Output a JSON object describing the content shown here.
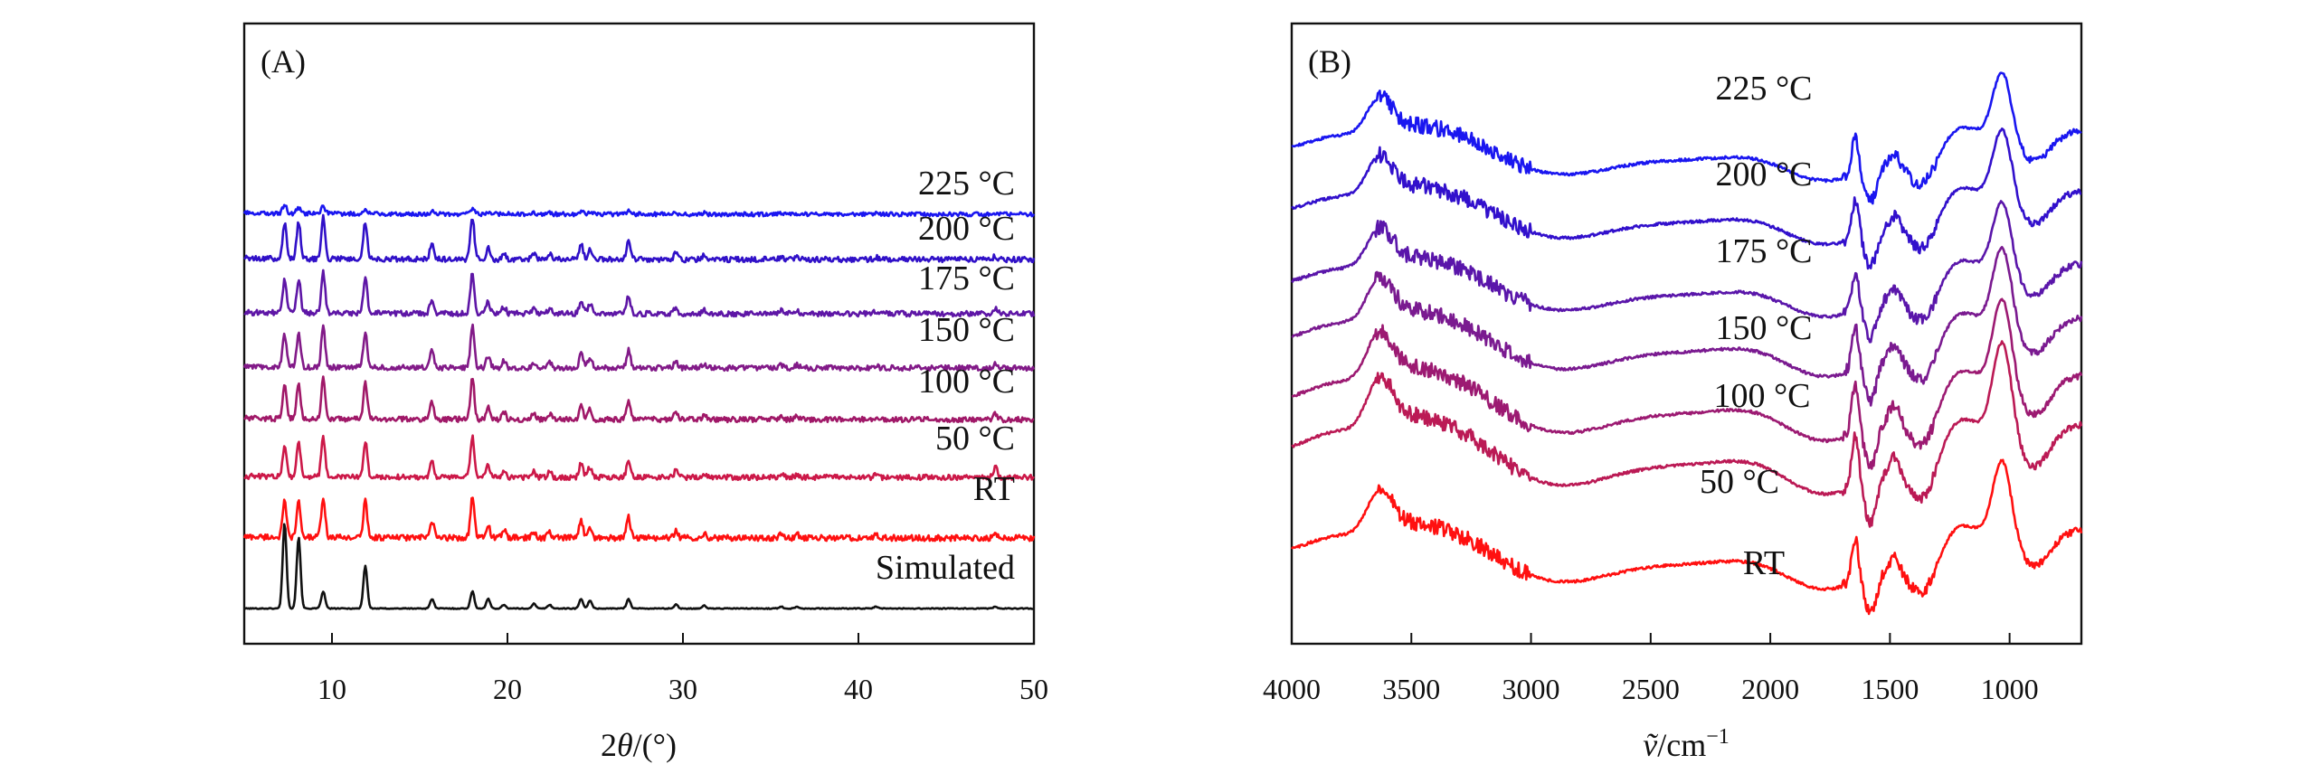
{
  "chart_data": [
    {
      "type": "line",
      "panel_label": "(A)",
      "xlabel_prefix": "2",
      "xlabel_var": "θ",
      "xlabel_suffix": "/(°)",
      "ylabel": "",
      "xlim": [
        5,
        50
      ],
      "x_ticks": [
        10,
        20,
        30,
        40,
        50
      ],
      "y_ticks": false,
      "stacked": true,
      "peaks_2theta": [
        7.3,
        8.1,
        9.5,
        11.9,
        15.7,
        18.0,
        18.9,
        19.8,
        21.5,
        22.4,
        24.2,
        24.7,
        26.9,
        29.6,
        31.2,
        35.6,
        36.5,
        41.0,
        47.8
      ],
      "series": [
        {
          "name": "Simulated",
          "color": "#111111",
          "intensities": [
            0.9,
            0.75,
            0.18,
            0.45,
            0.1,
            0.18,
            0.1,
            0.04,
            0.05,
            0.04,
            0.1,
            0.08,
            0.1,
            0.04,
            0.03,
            0.02,
            0.02,
            0.02,
            0.02
          ],
          "noise": 0.005,
          "background": 0.0
        },
        {
          "name": "RT",
          "color": "#ff1010",
          "intensities": [
            0.6,
            0.6,
            0.7,
            0.62,
            0.28,
            0.7,
            0.22,
            0.14,
            0.1,
            0.1,
            0.3,
            0.2,
            0.35,
            0.12,
            0.08,
            0.06,
            0.06,
            0.05,
            0.08
          ],
          "noise": 0.05,
          "background": 0.02
        },
        {
          "name": "50 °C",
          "color": "#cc1848",
          "intensities": [
            0.55,
            0.58,
            0.65,
            0.6,
            0.28,
            0.68,
            0.2,
            0.12,
            0.09,
            0.09,
            0.25,
            0.18,
            0.3,
            0.11,
            0.07,
            0.05,
            0.05,
            0.04,
            0.18
          ],
          "noise": 0.045,
          "background": 0.02
        },
        {
          "name": "100 °C",
          "color": "#a01868",
          "intensities": [
            0.58,
            0.6,
            0.68,
            0.62,
            0.3,
            0.7,
            0.2,
            0.12,
            0.09,
            0.09,
            0.27,
            0.19,
            0.32,
            0.11,
            0.07,
            0.06,
            0.05,
            0.04,
            0.1
          ],
          "noise": 0.045,
          "background": 0.02
        },
        {
          "name": "150 °C",
          "color": "#821a88",
          "intensities": [
            0.56,
            0.6,
            0.68,
            0.62,
            0.28,
            0.7,
            0.2,
            0.12,
            0.09,
            0.09,
            0.25,
            0.18,
            0.3,
            0.1,
            0.07,
            0.05,
            0.05,
            0.04,
            0.06
          ],
          "noise": 0.045,
          "background": 0.02
        },
        {
          "name": "175 °C",
          "color": "#5e16a6",
          "intensities": [
            0.55,
            0.58,
            0.7,
            0.6,
            0.26,
            0.68,
            0.2,
            0.12,
            0.09,
            0.09,
            0.24,
            0.18,
            0.3,
            0.1,
            0.07,
            0.05,
            0.05,
            0.04,
            0.1
          ],
          "noise": 0.045,
          "background": 0.02
        },
        {
          "name": "200 °C",
          "color": "#3010c8",
          "intensities": [
            0.6,
            0.62,
            0.72,
            0.64,
            0.28,
            0.72,
            0.2,
            0.12,
            0.09,
            0.09,
            0.26,
            0.18,
            0.32,
            0.1,
            0.07,
            0.05,
            0.05,
            0.04,
            0.06
          ],
          "noise": 0.045,
          "background": 0.02
        },
        {
          "name": "225 °C",
          "color": "#1a16f0",
          "intensities": [
            0.15,
            0.1,
            0.12,
            0.08,
            0.04,
            0.1,
            0.04,
            0.02,
            0.02,
            0.02,
            0.05,
            0.03,
            0.05,
            0.02,
            0.02,
            0.01,
            0.01,
            0.01,
            0.01
          ],
          "noise": 0.035,
          "background": 0.02
        }
      ]
    },
    {
      "type": "line",
      "panel_label": "(B)",
      "xlabel_var": "ṽ",
      "xlabel_suffix": "/cm",
      "xlabel_sup": "−1",
      "ylabel": "",
      "xlim": [
        4000,
        700
      ],
      "x_ticks": [
        4000,
        3500,
        3000,
        2500,
        2000,
        1500,
        1000
      ],
      "y_ticks": false,
      "stacked": true,
      "series": [
        {
          "name": "RT",
          "color": "#ff1010",
          "amp": 0.95
        },
        {
          "name": "50 °C",
          "color": "#bb1a55",
          "amp": 1.12
        },
        {
          "name": "100 °C",
          "color": "#9c1a72",
          "amp": 1.05
        },
        {
          "name": "150 °C",
          "color": "#7a1a90",
          "amp": 0.95
        },
        {
          "name": "175 °C",
          "color": "#5a16aa",
          "amp": 0.85
        },
        {
          "name": "200 °C",
          "color": "#3210cc",
          "amp": 0.85
        },
        {
          "name": "225 °C",
          "color": "#1a16f0",
          "amp": 0.8
        }
      ]
    }
  ]
}
